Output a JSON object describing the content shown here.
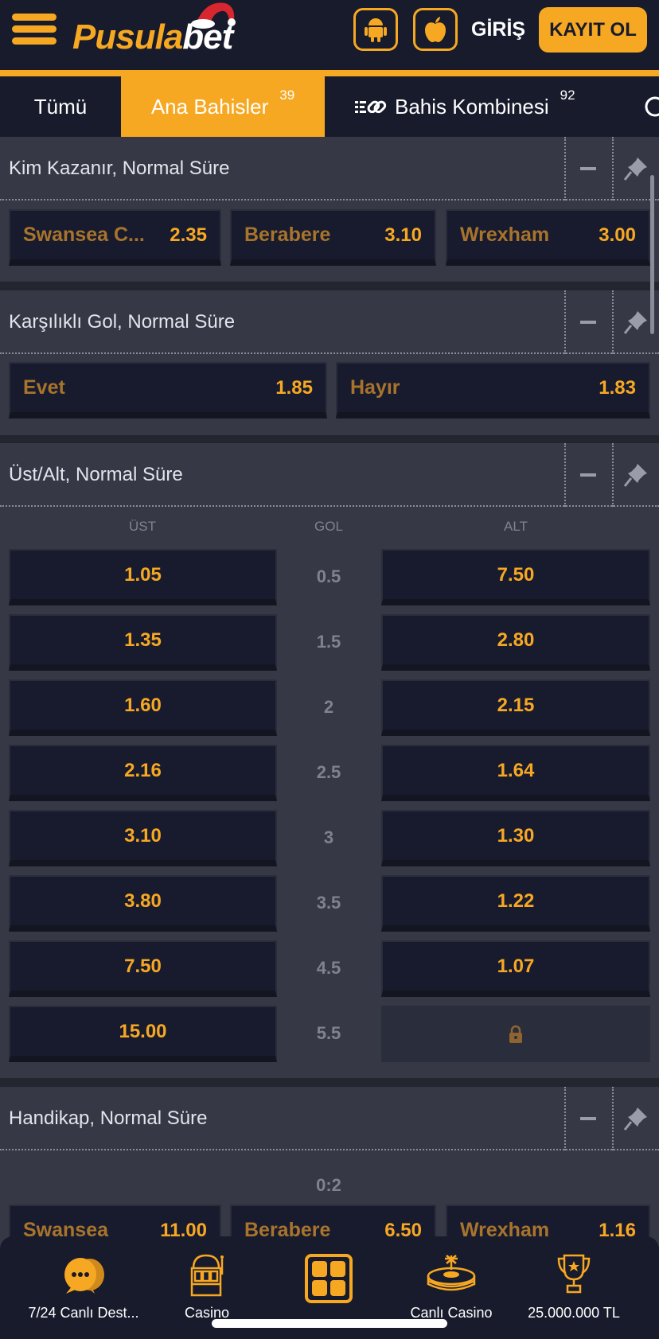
{
  "header": {
    "logo_text": "Pusulabet",
    "logo_part1": "Pusula",
    "logo_part2": "bet",
    "login_label": "GİRİŞ",
    "register_label": "KAYIT OL"
  },
  "tabs": [
    {
      "label": "Tümü"
    },
    {
      "label": "Ana Bahisler",
      "badge": "39",
      "active": true
    },
    {
      "label": "Bahis Kombinesi",
      "badge": "92"
    }
  ],
  "colors": {
    "accent": "#f7a823",
    "background": "#363945",
    "header": "#181b2c",
    "team_text": "#a8742c"
  },
  "markets": {
    "winner": {
      "title": "Kim Kazanır, Normal Süre",
      "odds": [
        {
          "name": "Swansea C...",
          "value": "2.35"
        },
        {
          "name": "Berabere",
          "value": "3.10"
        },
        {
          "name": "Wrexham",
          "value": "3.00"
        }
      ]
    },
    "btts": {
      "title": "Karşılıklı Gol, Normal Süre",
      "odds": [
        {
          "name": "Evet",
          "value": "1.85"
        },
        {
          "name": "Hayır",
          "value": "1.83"
        }
      ]
    },
    "overunder": {
      "title": "Üst/Alt, Normal Süre",
      "col_over": "ÜST",
      "col_line": "GOL",
      "col_under": "ALT",
      "rows": [
        {
          "over": "1.05",
          "line": "0.5",
          "under": "7.50"
        },
        {
          "over": "1.35",
          "line": "1.5",
          "under": "2.80"
        },
        {
          "over": "1.60",
          "line": "2",
          "under": "2.15"
        },
        {
          "over": "2.16",
          "line": "2.5",
          "under": "1.64"
        },
        {
          "over": "3.10",
          "line": "3",
          "under": "1.30"
        },
        {
          "over": "3.80",
          "line": "3.5",
          "under": "1.22"
        },
        {
          "over": "7.50",
          "line": "4.5",
          "under": "1.07"
        },
        {
          "over": "15.00",
          "line": "5.5",
          "under": null,
          "locked": true
        }
      ]
    },
    "handicap": {
      "title": "Handikap, Normal Süre",
      "line": "0:2",
      "odds": [
        {
          "name": "Swansea",
          "value": "11.00"
        },
        {
          "name": "Berabere",
          "value": "6.50"
        },
        {
          "name": "Wrexham",
          "value": "1.16"
        }
      ]
    }
  },
  "bottom_nav": [
    {
      "label": "7/24 Canlı Dest...",
      "icon": "chat-icon"
    },
    {
      "label": "Casino",
      "icon": "slot-machine-icon"
    },
    {
      "label": "",
      "icon": "grid-menu-icon"
    },
    {
      "label": "Canlı Casino",
      "icon": "roulette-icon"
    },
    {
      "label": "25.000.000 TL",
      "icon": "trophy-icon"
    }
  ]
}
